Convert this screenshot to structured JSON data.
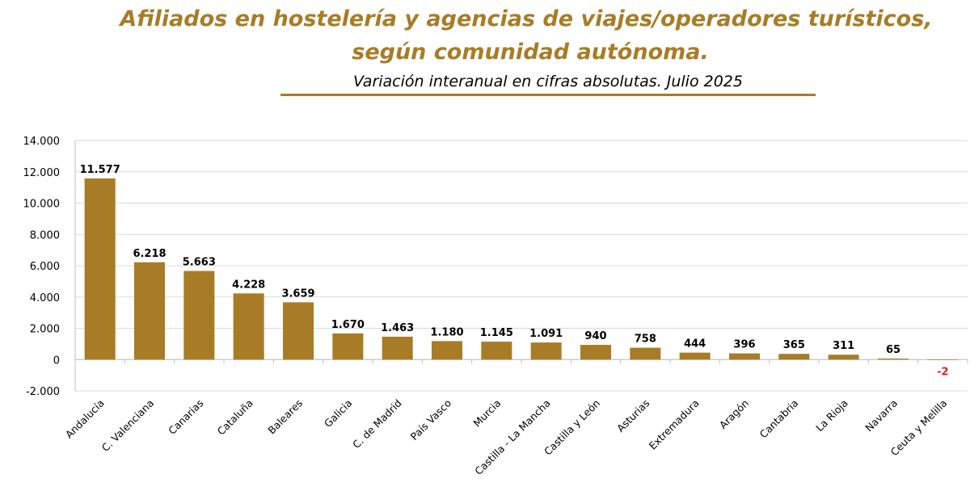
{
  "title_line1": "Afiliados en hostelería y agencias de viajes/operadores turísticos,",
  "title_line2": "según comunidad autónoma.",
  "subtitle": "Variación interanual en cifras absolutas. Julio 2025",
  "colors": {
    "title": "#A87C26",
    "bar": "#A87C26",
    "negative_label": "#E0201E",
    "grid": "#D9D9D9"
  },
  "chart_data": {
    "type": "bar",
    "categories": [
      "Andalucía",
      "C. Valenciana",
      "Canarias",
      "Cataluña",
      "Baleares",
      "Galicia",
      "C. de Madrid",
      "País Vasco",
      "Murcia",
      "Castilla - La Mancha",
      "Castilla y León",
      "Asturias",
      "Extremadura",
      "Aragón",
      "Cantabria",
      "La Rioja",
      "Navarra",
      "Ceuta y Melilla"
    ],
    "values": [
      11577,
      6218,
      5663,
      4228,
      3659,
      1670,
      1463,
      1180,
      1145,
      1091,
      940,
      758,
      444,
      396,
      365,
      311,
      65,
      -2
    ],
    "data_labels": [
      "11.577",
      "6.218",
      "5.663",
      "4.228",
      "3.659",
      "1.670",
      "1.463",
      "1.180",
      "1.145",
      "1.091",
      "940",
      "758",
      "444",
      "396",
      "365",
      "311",
      "65",
      "-2"
    ],
    "yticks": [
      -2000,
      0,
      2000,
      4000,
      6000,
      8000,
      10000,
      12000,
      14000
    ],
    "ytick_labels": [
      "-2.000",
      "0",
      "2.000",
      "4.000",
      "6.000",
      "8.000",
      "10.000",
      "12.000",
      "14.000"
    ],
    "ylim": [
      -2000,
      14000
    ],
    "grid": true,
    "legend": "none"
  }
}
